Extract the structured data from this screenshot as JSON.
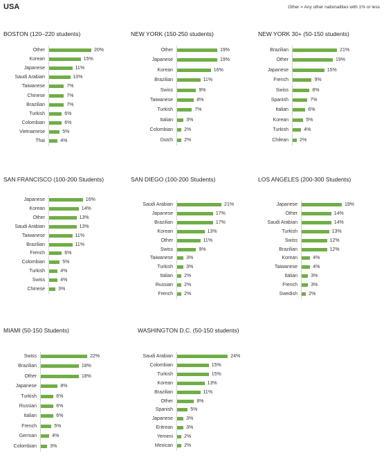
{
  "header": {
    "title": "USA",
    "note": "Other = Any other nationalities with 1% or less"
  },
  "colors": {
    "bar": "#70ad47"
  },
  "chart_data": [
    {
      "type": "bar",
      "orientation": "horizontal",
      "title": "BOSTON (120–220 students)",
      "categories": [
        "Other",
        "Korean",
        "Japanese",
        "Saudi Arabian",
        "Taiwanese",
        "Chinese",
        "Brazilian",
        "Turkish",
        "Colombian",
        "Vietnamese",
        "Thai"
      ],
      "values": [
        20,
        15,
        11,
        10,
        7,
        7,
        7,
        6,
        6,
        5,
        4
      ]
    },
    {
      "type": "bar",
      "orientation": "horizontal",
      "title": "NEW YORK (150-250 students)",
      "categories": [
        "Other",
        "Japanese",
        "Korean",
        "Brazilian",
        "Swiss",
        "Taiwanese",
        "Turkish",
        "Italian",
        "Colombian",
        "Dutch"
      ],
      "values": [
        19,
        19,
        16,
        11,
        9,
        8,
        7,
        3,
        2,
        2
      ]
    },
    {
      "type": "bar",
      "orientation": "horizontal",
      "title": "NEW YORK 30+ (50-150 students)",
      "categories": [
        "Brazilian",
        "Other",
        "Japanese",
        "French",
        "Swiss",
        "Spanish",
        "Italian",
        "Korean",
        "Turkish",
        "Chilean"
      ],
      "values": [
        21,
        19,
        15,
        9,
        8,
        7,
        6,
        5,
        4,
        2
      ]
    },
    {
      "type": "bar",
      "orientation": "horizontal",
      "title": "SAN FRANCISCO (100-200 Students)",
      "categories": [
        "Japanese",
        "Korean",
        "Other",
        "Saudi Arabian",
        "Taiwanese",
        "Brazilian",
        "French",
        "Colombian",
        "Turkish",
        "Swiss",
        "Chinese"
      ],
      "values": [
        16,
        14,
        13,
        13,
        11,
        11,
        6,
        5,
        4,
        4,
        3
      ]
    },
    {
      "type": "bar",
      "orientation": "horizontal",
      "title": "SAN DIEGO (100-200 Students)",
      "categories": [
        "Saudi Arabian",
        "Japanese",
        "Brazilian",
        "Korean",
        "Other",
        "Swiss",
        "Taiwanese",
        "Turkish",
        "Italian",
        "Russian",
        "French"
      ],
      "values": [
        21,
        17,
        17,
        13,
        11,
        9,
        3,
        3,
        2,
        2,
        2
      ]
    },
    {
      "type": "bar",
      "orientation": "horizontal",
      "title": "LOS ANGELES (200-300 Students)",
      "categories": [
        "Japanese",
        "Other",
        "Saudi Arabian",
        "Turkish",
        "Swiss",
        "Brazilian",
        "Korean",
        "Taiwanese",
        "Italian",
        "French",
        "Swedish"
      ],
      "values": [
        19,
        14,
        14,
        13,
        12,
        12,
        4,
        4,
        3,
        3,
        2
      ]
    },
    {
      "type": "bar",
      "orientation": "horizontal",
      "title": "MIAMI (50-150 Students)",
      "categories": [
        "Swiss",
        "Brazilian",
        "Other",
        "Japanese",
        "Turkish",
        "Russian",
        "Italian",
        "French",
        "German",
        "Colombian"
      ],
      "values": [
        22,
        18,
        18,
        8,
        6,
        6,
        6,
        5,
        4,
        3
      ]
    },
    {
      "type": "bar",
      "orientation": "horizontal",
      "title": "WASHINGTON D.C. (50-150 students)",
      "categories": [
        "Saudi Arabian",
        "Colombian",
        "Turkish",
        "Korean",
        "Brazilian",
        "Other",
        "Spanish",
        "Japanese",
        "Eritrean",
        "Yemeni",
        "Mexican"
      ],
      "values": [
        24,
        15,
        15,
        13,
        11,
        8,
        5,
        3,
        3,
        2,
        2
      ]
    }
  ]
}
